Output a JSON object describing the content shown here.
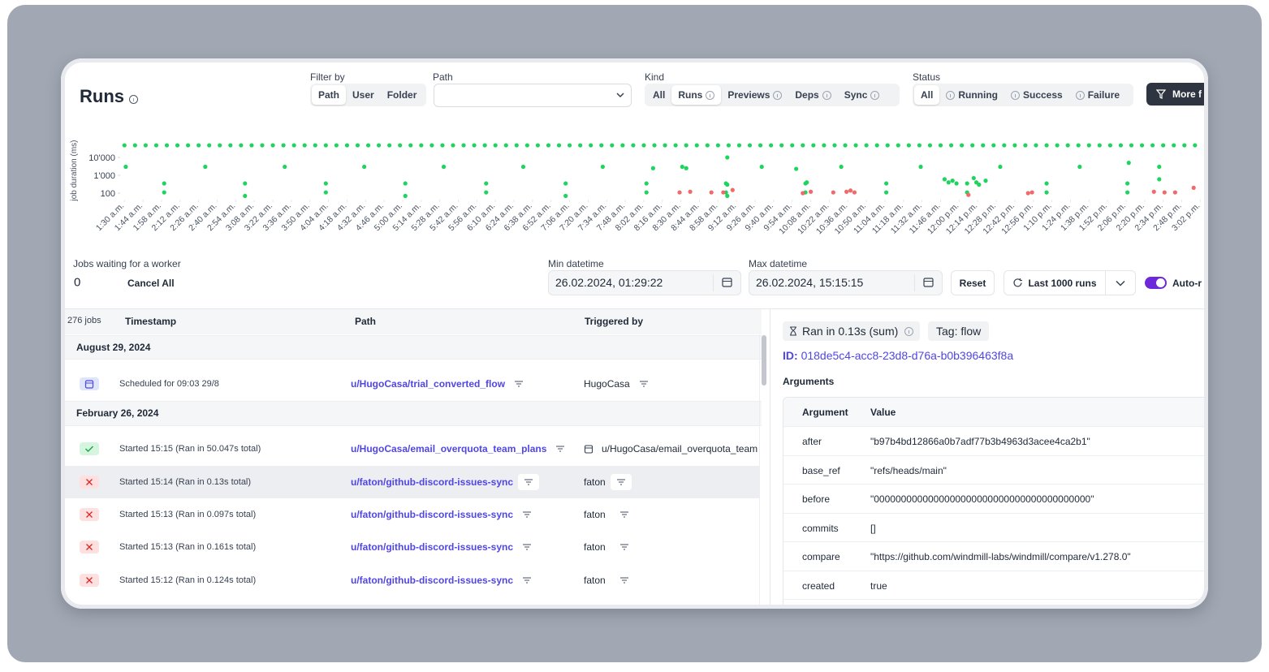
{
  "header": {
    "title": "Runs"
  },
  "filters": {
    "filter_by": {
      "label": "Filter by",
      "options": [
        "Path",
        "User",
        "Folder"
      ]
    },
    "path": {
      "label": "Path"
    },
    "kind": {
      "label": "Kind",
      "options": [
        "All",
        "Runs",
        "Previews",
        "Deps",
        "Sync"
      ]
    },
    "status": {
      "label": "Status",
      "options": [
        "All",
        "Running",
        "Success",
        "Failure"
      ]
    },
    "more_button": "More f"
  },
  "chart_data": {
    "type": "scatter",
    "y_label": "job duration (ms)",
    "log_scale": true,
    "xlim": [
      88,
      903
    ],
    "ylim": [
      48,
      120000
    ],
    "yticks": [
      {
        "value": 100,
        "label": "100"
      },
      {
        "value": 1000,
        "label": "1'000"
      },
      {
        "value": 10000,
        "label": "10'000"
      }
    ],
    "xticks": [
      {
        "value": 90,
        "label": "1:30 a.m."
      },
      {
        "value": 104,
        "label": "1:44 a.m."
      },
      {
        "value": 118,
        "label": "1:58 a.m."
      },
      {
        "value": 132,
        "label": "2:12 a.m."
      },
      {
        "value": 146,
        "label": "2:26 a.m."
      },
      {
        "value": 160,
        "label": "2:40 a.m."
      },
      {
        "value": 174,
        "label": "2:54 a.m."
      },
      {
        "value": 188,
        "label": "3:08 a.m."
      },
      {
        "value": 202,
        "label": "3:22 a.m."
      },
      {
        "value": 216,
        "label": "3:36 a.m."
      },
      {
        "value": 230,
        "label": "3:50 a.m."
      },
      {
        "value": 244,
        "label": "4:04 a.m."
      },
      {
        "value": 258,
        "label": "4:18 a.m."
      },
      {
        "value": 272,
        "label": "4:32 a.m."
      },
      {
        "value": 286,
        "label": "4:46 a.m."
      },
      {
        "value": 300,
        "label": "5:00 a.m."
      },
      {
        "value": 314,
        "label": "5:14 a.m."
      },
      {
        "value": 328,
        "label": "5:28 a.m."
      },
      {
        "value": 342,
        "label": "5:42 a.m."
      },
      {
        "value": 356,
        "label": "5:56 a.m."
      },
      {
        "value": 370,
        "label": "6:10 a.m."
      },
      {
        "value": 384,
        "label": "6:24 a.m."
      },
      {
        "value": 398,
        "label": "6:38 a.m."
      },
      {
        "value": 412,
        "label": "6:52 a.m."
      },
      {
        "value": 426,
        "label": "7:06 a.m."
      },
      {
        "value": 440,
        "label": "7:20 a.m."
      },
      {
        "value": 454,
        "label": "7:34 a.m."
      },
      {
        "value": 468,
        "label": "7:48 a.m."
      },
      {
        "value": 482,
        "label": "8:02 a.m."
      },
      {
        "value": 496,
        "label": "8:16 a.m."
      },
      {
        "value": 510,
        "label": "8:30 a.m."
      },
      {
        "value": 524,
        "label": "8:44 a.m."
      },
      {
        "value": 538,
        "label": "8:58 a.m."
      },
      {
        "value": 552,
        "label": "9:12 a.m."
      },
      {
        "value": 566,
        "label": "9:26 a.m."
      },
      {
        "value": 580,
        "label": "9:40 a.m."
      },
      {
        "value": 594,
        "label": "9:54 a.m."
      },
      {
        "value": 608,
        "label": "10:08 a.m."
      },
      {
        "value": 622,
        "label": "10:22 a.m."
      },
      {
        "value": 636,
        "label": "10:36 a.m."
      },
      {
        "value": 650,
        "label": "10:50 a.m."
      },
      {
        "value": 664,
        "label": "11:04 a.m."
      },
      {
        "value": 678,
        "label": "11:18 a.m."
      },
      {
        "value": 692,
        "label": "11:32 a.m."
      },
      {
        "value": 706,
        "label": "11:46 a.m."
      },
      {
        "value": 720,
        "label": "12:00 p.m."
      },
      {
        "value": 734,
        "label": "12:14 p.m."
      },
      {
        "value": 748,
        "label": "12:28 p.m."
      },
      {
        "value": 762,
        "label": "12:42 p.m."
      },
      {
        "value": 776,
        "label": "12:56 p.m."
      },
      {
        "value": 790,
        "label": "1:10 p.m."
      },
      {
        "value": 804,
        "label": "1:24 p.m."
      },
      {
        "value": 818,
        "label": "1:38 p.m."
      },
      {
        "value": 832,
        "label": "1:52 p.m."
      },
      {
        "value": 846,
        "label": "2:06 p.m."
      },
      {
        "value": 860,
        "label": "2:20 p.m."
      },
      {
        "value": 874,
        "label": "2:34 p.m."
      },
      {
        "value": 888,
        "label": "2:48 p.m."
      },
      {
        "value": 902,
        "label": "3:02 p.m."
      }
    ],
    "series": [
      {
        "color": "#1fd35f",
        "x": [
          90,
          98,
          106,
          114,
          122,
          130,
          138,
          146,
          154,
          162,
          170,
          178,
          186,
          194,
          202,
          210,
          218,
          226,
          234,
          242,
          250,
          258,
          266,
          274,
          282,
          290,
          298,
          306,
          314,
          322,
          330,
          338,
          346,
          354,
          362,
          370,
          378,
          386,
          394,
          402,
          410,
          418,
          426,
          434,
          442,
          450,
          458,
          466,
          474,
          482,
          490,
          498,
          506,
          514,
          522,
          530,
          538,
          546,
          554,
          562,
          570,
          578,
          586,
          594,
          602,
          610,
          618,
          626,
          634,
          642,
          650,
          658,
          666,
          674,
          682,
          690,
          698,
          706,
          714,
          722,
          730,
          738,
          746,
          754,
          762,
          770,
          778,
          786,
          794,
          802,
          810,
          818,
          826,
          834,
          842,
          850,
          858,
          866,
          874,
          882,
          890,
          898
        ],
        "values": [
          48000,
          48000,
          48000,
          48000,
          48000,
          48000,
          48000,
          48000,
          48000,
          48000,
          48000,
          48000,
          48000,
          48000,
          48000,
          48000,
          48000,
          48000,
          48000,
          48000,
          48000,
          48000,
          48000,
          48000,
          48000,
          48000,
          48000,
          48000,
          48000,
          48000,
          48000,
          48000,
          48000,
          48000,
          48000,
          48000,
          48000,
          48000,
          48000,
          48000,
          48000,
          48000,
          48000,
          48000,
          48000,
          48000,
          48000,
          48000,
          48000,
          48000,
          48000,
          48000,
          48000,
          48000,
          48000,
          48000,
          48000,
          48000,
          48000,
          48000,
          48000,
          48000,
          48000,
          48000,
          48000,
          48000,
          48000,
          48000,
          48000,
          48000,
          48000,
          48000,
          48000,
          48000,
          48000,
          48000,
          48000,
          48000,
          48000,
          48000,
          48000,
          48000,
          48000,
          48000,
          48000,
          48000,
          48000,
          48000,
          48000,
          48000,
          48000,
          48000,
          48000,
          48000,
          48000,
          48000,
          48000,
          48000,
          48000,
          48000,
          48000,
          48000
        ]
      },
      {
        "color": "#1fd35f",
        "x": [
          91,
          151,
          211,
          271,
          331,
          391,
          451,
          511,
          571,
          631,
          691,
          751,
          811,
          871,
          120,
          120,
          181,
          181,
          242,
          242,
          302,
          302,
          363,
          363,
          423,
          423,
          484,
          484,
          544,
          544,
          604,
          604,
          665,
          665,
          726,
          726,
          786,
          786,
          847,
          847,
          489,
          514,
          545,
          545,
          545,
          597,
          605,
          848,
          871,
          709,
          712,
          715,
          718,
          731,
          733,
          735,
          740
        ],
        "values": [
          3000,
          3000,
          3000,
          3000,
          3000,
          3000,
          3000,
          3000,
          3000,
          3000,
          3000,
          3000,
          3000,
          3000,
          350,
          110,
          350,
          70,
          350,
          110,
          350,
          70,
          350,
          110,
          350,
          70,
          350,
          110,
          350,
          110,
          350,
          110,
          350,
          110,
          350,
          110,
          350,
          110,
          350,
          110,
          2500,
          2500,
          10000,
          300,
          70,
          2300,
          400,
          5000,
          600,
          600,
          400,
          500,
          350,
          700,
          400,
          300,
          500
        ]
      },
      {
        "color": "#ef6b6b",
        "x": [
          509,
          517,
          533,
          542,
          549,
          602,
          608,
          625,
          635,
          638,
          641,
          727,
          772,
          775,
          867,
          875,
          883,
          897
        ],
        "values": [
          110,
          120,
          110,
          110,
          150,
          100,
          120,
          110,
          120,
          140,
          110,
          80,
          100,
          110,
          120,
          110,
          110,
          200
        ]
      }
    ]
  },
  "queue": {
    "label": "Jobs waiting for a worker",
    "count": 0,
    "cancel": "Cancel All"
  },
  "range": {
    "min_label": "Min datetime",
    "min_value": "26.02.2024, 01:29:22",
    "max_label": "Max datetime",
    "max_value": "26.02.2024, 15:15:15",
    "reset": "Reset",
    "last_runs": "Last 1000 runs",
    "auto_refresh": "Auto-r"
  },
  "jobs": {
    "count": "276 jobs",
    "columns": [
      "Timestamp",
      "Path",
      "Triggered by"
    ],
    "groups": [
      {
        "date": "August 29, 2024",
        "rows": [
          {
            "timestamp": "Scheduled for 09:03 29/8",
            "path": "u/HugoCasa/trial_converted_flow",
            "triggered_by": "HugoCasa"
          }
        ]
      },
      {
        "date": "February 26, 2024",
        "rows": [
          {
            "timestamp": "Started 15:15 (Ran in 50.047s total)",
            "path": "u/HugoCasa/email_overquota_team_plans",
            "triggered_by": "u/HugoCasa/email_overquota_team"
          },
          {
            "timestamp": "Started 15:14 (Ran in 0.13s total)",
            "path": "u/faton/github-discord-issues-sync",
            "triggered_by": "faton"
          },
          {
            "timestamp": "Started 15:13 (Ran in 0.097s total)",
            "path": "u/faton/github-discord-issues-sync",
            "triggered_by": "faton"
          },
          {
            "timestamp": "Started 15:13 (Ran in 0.161s total)",
            "path": "u/faton/github-discord-issues-sync",
            "triggered_by": "faton"
          },
          {
            "timestamp": "Started 15:12 (Ran in 0.124s total)",
            "path": "u/faton/github-discord-issues-sync",
            "triggered_by": "faton"
          }
        ]
      }
    ]
  },
  "detail": {
    "duration": "Ran in 0.13s (sum)",
    "tag": "Tag: flow",
    "id_label": "ID:",
    "id": "018de5c4-acc8-23d8-d76a-b0b396463f8a",
    "arguments_title": "Arguments",
    "columns": [
      "Argument",
      "Value"
    ],
    "rows": [
      [
        "after",
        "\"b97b4bd12866a0b7adf77b3b4963d3acee4ca2b1\""
      ],
      [
        "base_ref",
        "\"refs/heads/main\""
      ],
      [
        "before",
        "\"0000000000000000000000000000000000000000\""
      ],
      [
        "commits",
        "[]"
      ],
      [
        "compare",
        "\"https://github.com/windmill-labs/windmill/compare/v1.278.0\""
      ],
      [
        "created",
        "true"
      ]
    ]
  }
}
